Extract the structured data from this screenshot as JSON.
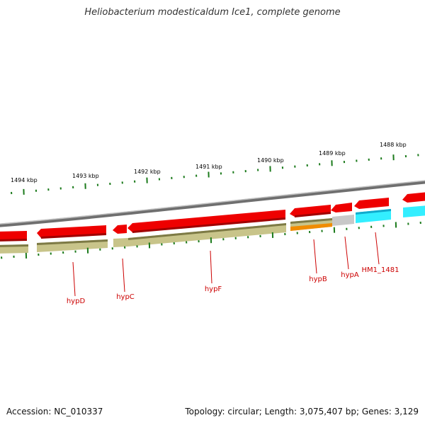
{
  "title": "Heliobacterium modesticaldum Ice1, complete genome",
  "accession": "Accession: NC_010337",
  "summary": "Topology: circular; Length: 3,075,407 bp; Genes: 3,129",
  "colors": {
    "backbone": "#8a8a8a",
    "gene_red": "#ee0000",
    "gene_red_dark": "#b00000",
    "olive": "#c8c48a",
    "olive_dark": "#7d7a45",
    "orange": "#f08c00",
    "gray_gene": "#c8c8c8",
    "cyan": "#33eeff",
    "tick_green": "#1b7a1b",
    "label_red": "#cc0000"
  },
  "scale_labels": [
    "1494 kbp",
    "1493 kbp",
    "1492 kbp",
    "1491 kbp",
    "1490 kbp",
    "1489 kbp",
    "1488 kbp"
  ],
  "genes": [
    {
      "name": "hypD"
    },
    {
      "name": "hypC"
    },
    {
      "name": "hypF"
    },
    {
      "name": "hypB"
    },
    {
      "name": "hypA"
    },
    {
      "name": "HM1_1481"
    }
  ]
}
